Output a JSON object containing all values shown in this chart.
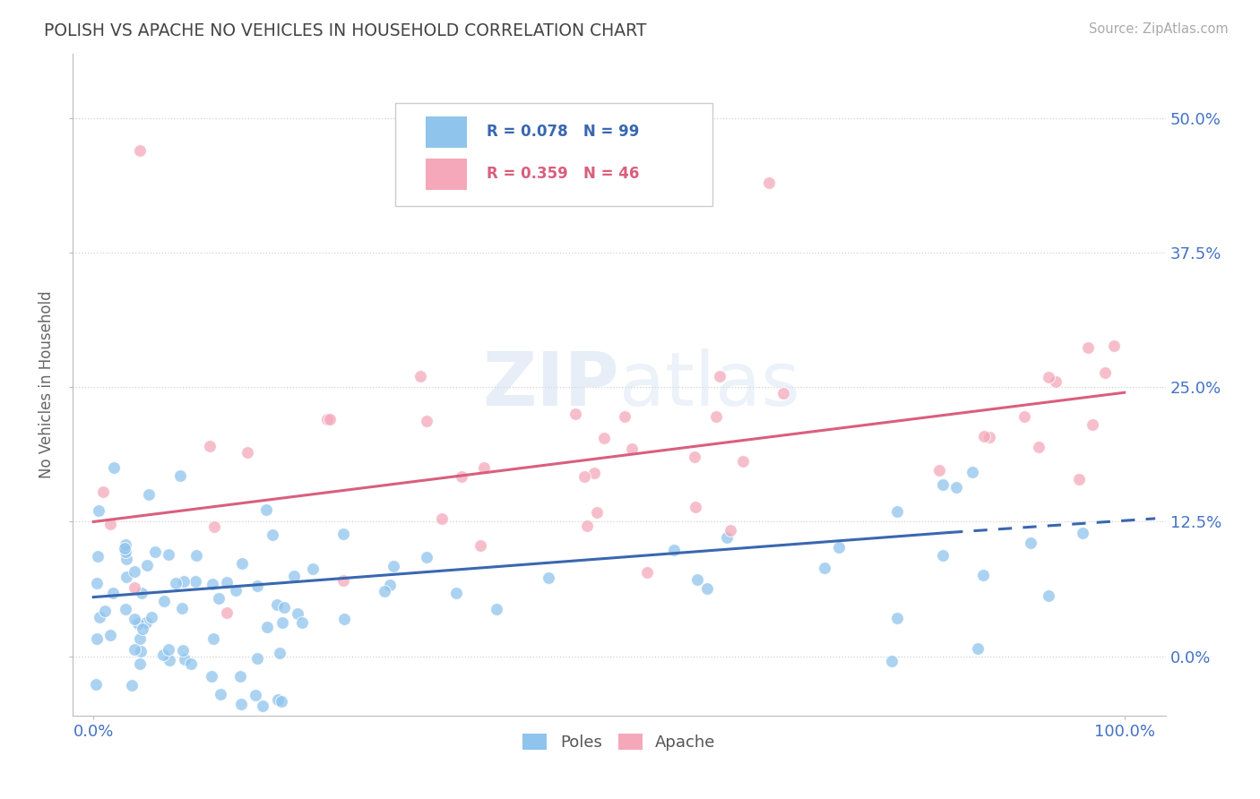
{
  "title": "POLISH VS APACHE NO VEHICLES IN HOUSEHOLD CORRELATION CHART",
  "source": "Source: ZipAtlas.com",
  "ylabel": "No Vehicles in Household",
  "poles_R": 0.078,
  "poles_N": 99,
  "apache_R": 0.359,
  "apache_N": 46,
  "poles_color": "#8FC4EC",
  "apache_color": "#F4A8BA",
  "poles_line_color": "#3A67B0",
  "apache_line_color": "#D95F7F",
  "tick_color": "#4472C4",
  "title_color": "#444444",
  "source_color": "#AAAAAA",
  "ylabel_color": "#666666",
  "background_color": "#FFFFFF",
  "grid_color": "#CCCCCC",
  "watermark": "ZIPatlas",
  "watermark_color": "#D0DFF0",
  "xlim": [
    -0.02,
    1.04
  ],
  "ylim": [
    -0.055,
    0.56
  ],
  "ytick_vals": [
    0.0,
    0.125,
    0.25,
    0.375,
    0.5
  ],
  "ytick_labels": [
    "0.0%",
    "12.5%",
    "25.0%",
    "37.5%",
    "50.0%"
  ],
  "xtick_vals": [
    0.0,
    1.0
  ],
  "xtick_labels": [
    "0.0%",
    "100.0%"
  ],
  "poles_trend_x0": 0.0,
  "poles_trend_y0": 0.055,
  "poles_trend_x1": 0.83,
  "poles_trend_y1": 0.115,
  "poles_trend_dash_x0": 0.83,
  "poles_trend_dash_y0": 0.115,
  "poles_trend_dash_x1": 1.03,
  "poles_trend_dash_y1": 0.128,
  "apache_trend_x0": 0.0,
  "apache_trend_y0": 0.125,
  "apache_trend_x1": 1.0,
  "apache_trend_y1": 0.245
}
